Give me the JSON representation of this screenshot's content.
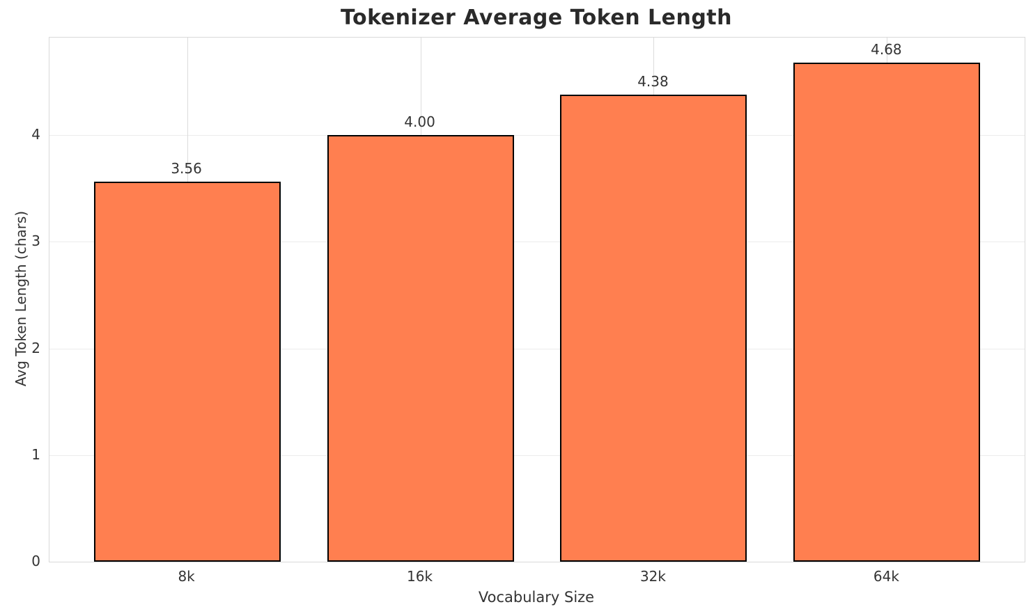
{
  "chart_data": {
    "type": "bar",
    "title": "Tokenizer Average Token Length",
    "xlabel": "Vocabulary Size",
    "ylabel": "Avg Token Length (chars)",
    "categories": [
      "8k",
      "16k",
      "32k",
      "64k"
    ],
    "values": [
      3.56,
      4.0,
      4.38,
      4.68
    ],
    "value_labels": [
      "3.56",
      "4.00",
      "4.38",
      "4.68"
    ],
    "yticks": [
      0,
      1,
      2,
      3,
      4
    ],
    "ytick_labels": [
      "0",
      "1",
      "2",
      "3",
      "4"
    ],
    "ylim": [
      0,
      4.914
    ],
    "xlim": [
      -0.59,
      3.59
    ],
    "bar_width_units": 0.8,
    "grid": true,
    "legend": null,
    "colors": {
      "bar_fill": "#FF7F50",
      "bar_edge": "#000000",
      "title_text": "#2a2a2a",
      "tick_text": "#333333",
      "grid_horizontal": "#ececec",
      "grid_vertical": "#dcdcdc",
      "spine": "#d9d9d9",
      "background": "#ffffff"
    }
  }
}
